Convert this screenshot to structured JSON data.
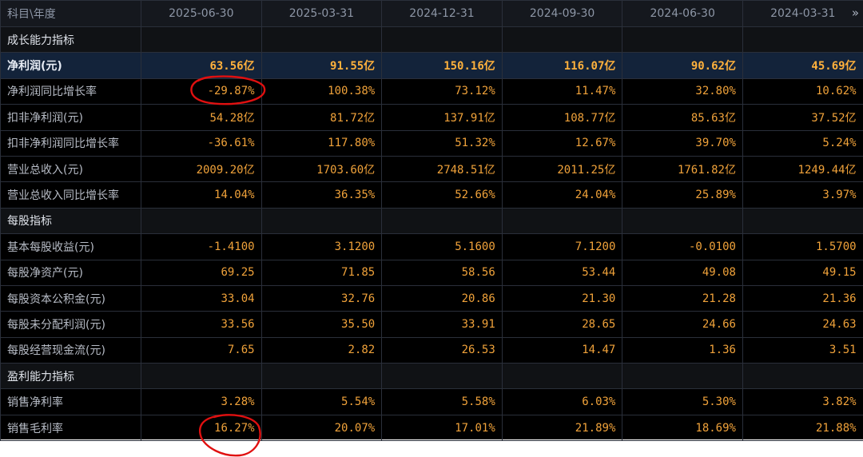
{
  "header": {
    "corner": "科目\\年度",
    "dates": [
      "2025-06-30",
      "2025-03-31",
      "2024-12-31",
      "2024-09-30",
      "2024-06-30",
      "2024-03-31"
    ],
    "next_icon": "double-chevron-right-icon",
    "next_glyph": "»"
  },
  "rows": [
    {
      "label": "成长能力指标",
      "type": "section",
      "values": [
        "",
        "",
        "",
        "",
        "",
        ""
      ]
    },
    {
      "label": "净利润(元)",
      "type": "highlight",
      "values": [
        "63.56亿",
        "91.55亿",
        "150.16亿",
        "116.07亿",
        "90.62亿",
        "45.69亿"
      ]
    },
    {
      "label": "净利润同比增长率",
      "type": "data",
      "values": [
        "-29.87%",
        "100.38%",
        "73.12%",
        "11.47%",
        "32.80%",
        "10.62%"
      ]
    },
    {
      "label": "扣非净利润(元)",
      "type": "data",
      "values": [
        "54.28亿",
        "81.72亿",
        "137.91亿",
        "108.77亿",
        "85.63亿",
        "37.52亿"
      ]
    },
    {
      "label": "扣非净利润同比增长率",
      "type": "data",
      "values": [
        "-36.61%",
        "117.80%",
        "51.32%",
        "12.67%",
        "39.70%",
        "5.24%"
      ]
    },
    {
      "label": "营业总收入(元)",
      "type": "data",
      "values": [
        "2009.20亿",
        "1703.60亿",
        "2748.51亿",
        "2011.25亿",
        "1761.82亿",
        "1249.44亿"
      ]
    },
    {
      "label": "营业总收入同比增长率",
      "type": "data",
      "values": [
        "14.04%",
        "36.35%",
        "52.66%",
        "24.04%",
        "25.89%",
        "3.97%"
      ]
    },
    {
      "label": "每股指标",
      "type": "section",
      "values": [
        "",
        "",
        "",
        "",
        "",
        ""
      ]
    },
    {
      "label": "基本每股收益(元)",
      "type": "data",
      "values": [
        "-1.4100",
        "3.1200",
        "5.1600",
        "7.1200",
        "-0.0100",
        "1.5700"
      ]
    },
    {
      "label": "每股净资产(元)",
      "type": "data",
      "values": [
        "69.25",
        "71.85",
        "58.56",
        "53.44",
        "49.08",
        "49.15"
      ]
    },
    {
      "label": "每股资本公积金(元)",
      "type": "data",
      "values": [
        "33.04",
        "32.76",
        "20.86",
        "21.30",
        "21.28",
        "21.36"
      ]
    },
    {
      "label": "每股未分配利润(元)",
      "type": "data",
      "values": [
        "33.56",
        "35.50",
        "33.91",
        "28.65",
        "24.66",
        "24.63"
      ]
    },
    {
      "label": "每股经营现金流(元)",
      "type": "data",
      "values": [
        "7.65",
        "2.82",
        "26.53",
        "14.47",
        "1.36",
        "3.51"
      ]
    },
    {
      "label": "盈利能力指标",
      "type": "section",
      "values": [
        "",
        "",
        "",
        "",
        "",
        ""
      ]
    },
    {
      "label": "销售净利率",
      "type": "data",
      "values": [
        "3.28%",
        "5.54%",
        "5.58%",
        "6.03%",
        "5.30%",
        "3.82%"
      ]
    },
    {
      "label": "销售毛利率",
      "type": "data",
      "values": [
        "16.27%",
        "20.07%",
        "17.01%",
        "21.89%",
        "18.69%",
        "21.88%"
      ]
    }
  ],
  "colors": {
    "value": "#f0a23a",
    "label": "#b7bcc6",
    "header": "#8d96a6",
    "highlight_bg": "#13233a",
    "annotation": "#e01010"
  }
}
